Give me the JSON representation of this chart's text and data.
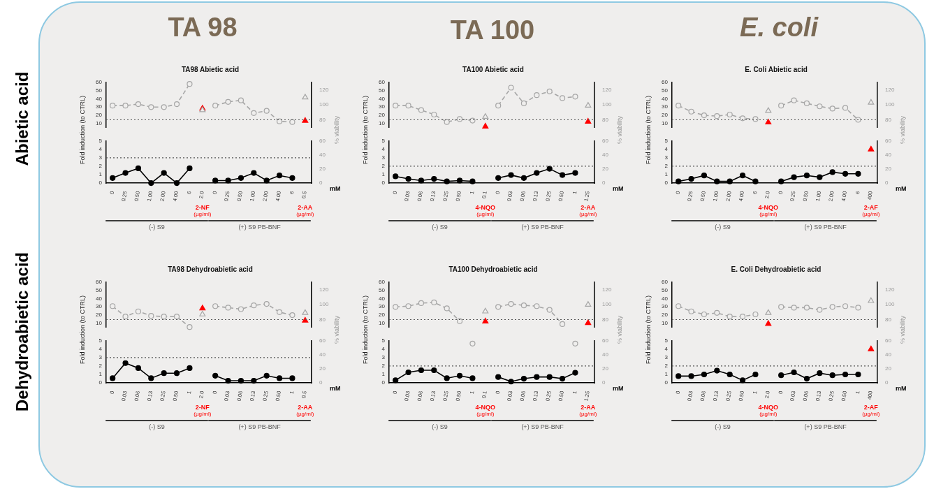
{
  "chart_data": [
    {
      "type": "line",
      "title": "TA98 Abietic acid",
      "categories": [
        "0",
        "0.25",
        "0.50",
        "1.00",
        "2.00",
        "4.00",
        "6",
        "2.0",
        "0",
        "0.25",
        "0.50",
        "1.00",
        "2.00",
        "4.00",
        "6",
        "0.5"
      ],
      "tick_labels": "y",
      "ylim": [
        5,
        60
      ],
      "yticks": [
        10,
        20,
        30,
        40,
        50,
        60
      ],
      "y2lim": [
        70,
        130
      ],
      "y2ticks": [
        80,
        100,
        120
      ],
      "series": [
        {
          "type": "line",
          "axis": "y2",
          "color": "#a6a6a6",
          "marker": "circle",
          "line_style": "dashed",
          "values": [
            99,
            99,
            101,
            97,
            97,
            101,
            128,
            null,
            99,
            104,
            106,
            89,
            92,
            78,
            77,
            null
          ]
        },
        {
          "type": "scatter",
          "axis": "y",
          "color": "#ff0000",
          "marker": "triangle",
          "values": [
            null,
            null,
            null,
            null,
            null,
            null,
            null,
            28,
            null,
            null,
            null,
            null,
            null,
            null,
            null,
            13
          ]
        },
        {
          "type": "scatter",
          "axis": "y2",
          "color": "#a6a6a6",
          "marker": "triangle",
          "values": [
            null,
            null,
            null,
            null,
            null,
            null,
            null,
            93,
            null,
            null,
            null,
            null,
            null,
            null,
            null,
            110
          ]
        }
      ],
      "ref_lines": [
        {
          "axis": "y2",
          "value": 80,
          "line_style": "dotted"
        }
      ]
    },
    {
      "type": "line",
      "categories": [
        "0",
        "0.25",
        "0.50",
        "1.00",
        "2.00",
        "4.00",
        "6",
        "2.0",
        "0",
        "0.25",
        "0.50",
        "1.00",
        "2.00",
        "4.00",
        "6",
        "0.5"
      ],
      "xlabel": "mM",
      "ylabel": "Fold induction (to CTRL)",
      "y2label": "% viability",
      "ylim": [
        0,
        5
      ],
      "yticks": [
        0,
        1,
        2,
        3,
        4,
        5
      ],
      "y2lim": [
        0,
        60
      ],
      "y2ticks": [
        0,
        20,
        40,
        60
      ],
      "series": [
        {
          "type": "line",
          "axis": "y",
          "color": "#000000",
          "marker": "circle",
          "line_style": "solid",
          "values": [
            0.6,
            1.2,
            1.75,
            0,
            1.2,
            0,
            1.75,
            null,
            0.3,
            0.3,
            0.6,
            1.2,
            0.3,
            0.9,
            0.6,
            null
          ]
        }
      ],
      "ref_lines": [
        {
          "axis": "y",
          "value": 3,
          "line_style": "dotted"
        }
      ],
      "annotations": [
        "2-NF",
        "(µg/ml)",
        "2-AA",
        "(µg/ml)",
        "(-) S9",
        "(+) S9 PB-BNF"
      ]
    },
    {
      "type": "line",
      "title": "TA100 Abietic acid",
      "categories": [
        "0",
        "0.03",
        "0.06",
        "0.13",
        "0.25",
        "0.50",
        "1",
        "0.1",
        "0",
        "0.03",
        "0.06",
        "0.13",
        "0.25",
        "0.50",
        "1",
        "1.25"
      ],
      "tick_labels": "y",
      "ylim": [
        5,
        60
      ],
      "yticks": [
        10,
        20,
        30,
        40,
        50,
        60
      ],
      "y2lim": [
        70,
        130
      ],
      "y2ticks": [
        80,
        100,
        120
      ],
      "series": [
        {
          "type": "line",
          "axis": "y2",
          "color": "#a6a6a6",
          "marker": "circle",
          "line_style": "dashed",
          "values": [
            99,
            99,
            93,
            87,
            77,
            81,
            79,
            null,
            99,
            123,
            102,
            113,
            118,
            109,
            111,
            null
          ]
        },
        {
          "type": "scatter",
          "axis": "y",
          "color": "#ff0000",
          "marker": "triangle",
          "values": [
            null,
            null,
            null,
            null,
            null,
            null,
            null,
            6,
            null,
            null,
            null,
            null,
            null,
            null,
            null,
            12
          ]
        },
        {
          "type": "scatter",
          "axis": "y2",
          "color": "#a6a6a6",
          "marker": "triangle",
          "values": [
            null,
            null,
            null,
            null,
            null,
            null,
            null,
            84,
            null,
            null,
            null,
            null,
            null,
            null,
            null,
            99
          ]
        }
      ],
      "ref_lines": [
        {
          "axis": "y2",
          "value": 80,
          "line_style": "dotted"
        }
      ]
    },
    {
      "type": "line",
      "categories": [
        "0",
        "0.03",
        "0.06",
        "0.13",
        "0.25",
        "0.50",
        "1",
        "0.1",
        "0",
        "0.03",
        "0.06",
        "0.13",
        "0.25",
        "0.50",
        "1",
        "1.25"
      ],
      "xlabel": "mM",
      "ylabel": "Fold induction (to CTRL)",
      "y2label": "% viability",
      "ylim": [
        0,
        5
      ],
      "yticks": [
        0,
        1,
        2,
        3,
        4,
        5
      ],
      "y2lim": [
        0,
        60
      ],
      "y2ticks": [
        0,
        20,
        40,
        60
      ],
      "series": [
        {
          "type": "line",
          "axis": "y",
          "color": "#000000",
          "marker": "circle",
          "line_style": "solid",
          "values": [
            0.8,
            0.5,
            0.3,
            0.5,
            0.2,
            0.3,
            0.2,
            null,
            0.6,
            0.95,
            0.6,
            1.2,
            1.7,
            0.95,
            1.2,
            null
          ]
        }
      ],
      "ref_lines": [
        {
          "axis": "y",
          "value": 2,
          "line_style": "dotted"
        }
      ],
      "annotations": [
        "4-NQO",
        "(µg/ml)",
        "2-AA",
        "(µg/ml)",
        "(-) S9",
        "(+) S9 PB-BNF"
      ]
    },
    {
      "type": "line",
      "title": "E. Coli Abietic acid",
      "categories": [
        "0",
        "0.25",
        "0.50",
        "1.00",
        "2.00",
        "4.00",
        "6",
        "2.0",
        "0",
        "0.25",
        "0.50",
        "1.00",
        "2.00",
        "4.00",
        "6",
        "400"
      ],
      "tick_labels": "y",
      "ylim": [
        5,
        60
      ],
      "yticks": [
        10,
        20,
        30,
        40,
        50,
        60
      ],
      "y2lim": [
        70,
        130
      ],
      "y2ticks": [
        80,
        100,
        120
      ],
      "series": [
        {
          "type": "line",
          "axis": "y2",
          "color": "#a6a6a6",
          "marker": "circle",
          "line_style": "dashed",
          "values": [
            99,
            91,
            86,
            85,
            87,
            82,
            81,
            null,
            99,
            106,
            102,
            98,
            95,
            96,
            80,
            null
          ]
        },
        {
          "type": "scatter",
          "axis": "y",
          "color": "#ff0000",
          "marker": "triangle",
          "values": [
            null,
            null,
            null,
            null,
            null,
            null,
            null,
            11,
            null,
            null,
            null,
            null,
            null,
            null,
            null,
            null
          ]
        },
        {
          "type": "scatter",
          "axis": "y2",
          "color": "#a6a6a6",
          "marker": "triangle",
          "values": [
            null,
            null,
            null,
            null,
            null,
            null,
            null,
            92,
            null,
            null,
            null,
            null,
            null,
            null,
            null,
            103
          ]
        }
      ],
      "ref_lines": [
        {
          "axis": "y2",
          "value": 80,
          "line_style": "dotted"
        }
      ]
    },
    {
      "type": "line",
      "categories": [
        "0",
        "0.25",
        "0.50",
        "1.00",
        "2.00",
        "4.00",
        "6",
        "2.0",
        "0",
        "0.25",
        "0.50",
        "1.00",
        "2.00",
        "4.00",
        "6",
        "400"
      ],
      "xlabel": "mM",
      "ylabel": "Fold induction (to CTRL)",
      "y2label": "% viability",
      "ylim": [
        0,
        5
      ],
      "yticks": [
        0,
        1,
        2,
        3,
        4,
        5
      ],
      "y2lim": [
        0,
        60
      ],
      "y2ticks": [
        0,
        20,
        40,
        60
      ],
      "series": [
        {
          "type": "line",
          "axis": "y",
          "color": "#000000",
          "marker": "circle",
          "line_style": "solid",
          "values": [
            0.2,
            0.5,
            0.9,
            0.2,
            0.2,
            0.9,
            0.2,
            null,
            0.2,
            0.7,
            0.9,
            0.7,
            1.3,
            1.1,
            1.1,
            null
          ]
        },
        {
          "type": "scatter",
          "axis": "y",
          "color": "#ff0000",
          "marker": "triangle",
          "values": [
            null,
            null,
            null,
            null,
            null,
            null,
            null,
            null,
            null,
            null,
            null,
            null,
            null,
            null,
            null,
            4
          ]
        }
      ],
      "ref_lines": [
        {
          "axis": "y",
          "value": 2,
          "line_style": "dotted"
        }
      ],
      "annotations": [
        "4-NQO",
        "(µg/ml)",
        "2-AF",
        "(µg/ml)",
        "(-) S9",
        "(+) S9 PB-BNF"
      ]
    },
    {
      "type": "line",
      "title": "TA98 Dehydroabietic acid",
      "categories": [
        "0",
        "0.03",
        "0.06",
        "0.13",
        "0.25",
        "0.50",
        "1",
        "2.0",
        "0",
        "0.03",
        "0.06",
        "0.13",
        "0.25",
        "0.50",
        "1",
        "0.5"
      ],
      "tick_labels": "y",
      "ylim": [
        5,
        60
      ],
      "yticks": [
        10,
        20,
        30,
        40,
        50,
        60
      ],
      "y2lim": [
        70,
        130
      ],
      "y2ticks": [
        80,
        100,
        120
      ],
      "series": [
        {
          "type": "line",
          "axis": "y2",
          "color": "#a6a6a6",
          "marker": "circle",
          "line_style": "dashed",
          "values": [
            98,
            84,
            91,
            85,
            84,
            84,
            70,
            null,
            98,
            96,
            94,
            99,
            101,
            90,
            86,
            null
          ]
        },
        {
          "type": "scatter",
          "axis": "y",
          "color": "#ff0000",
          "marker": "triangle",
          "values": [
            null,
            null,
            null,
            null,
            null,
            null,
            null,
            28,
            null,
            null,
            null,
            null,
            null,
            null,
            null,
            13
          ]
        },
        {
          "type": "scatter",
          "axis": "y2",
          "color": "#a6a6a6",
          "marker": "triangle",
          "values": [
            null,
            null,
            null,
            null,
            null,
            null,
            null,
            87,
            null,
            null,
            null,
            null,
            null,
            null,
            null,
            89
          ]
        }
      ],
      "ref_lines": [
        {
          "axis": "y2",
          "value": 80,
          "line_style": "dotted"
        }
      ]
    },
    {
      "type": "line",
      "categories": [
        "0",
        "0.03",
        "0.06",
        "0.13",
        "0.25",
        "0.50",
        "1",
        "2.0",
        "0",
        "0.03",
        "0.06",
        "0.13",
        "0.25",
        "0.50",
        "1",
        "0.5"
      ],
      "xlabel": "mM",
      "ylabel": "Fold induction (to CTRL)",
      "y2label": "% viability",
      "ylim": [
        0,
        5
      ],
      "yticks": [
        0,
        1,
        2,
        3,
        4,
        5
      ],
      "y2lim": [
        0,
        60
      ],
      "y2ticks": [
        0,
        20,
        40,
        60
      ],
      "series": [
        {
          "type": "line",
          "axis": "y",
          "color": "#000000",
          "marker": "circle",
          "line_style": "solid",
          "values": [
            0.55,
            2.35,
            1.75,
            0.55,
            1.15,
            1.15,
            1.75,
            null,
            0.85,
            0.25,
            0.25,
            0.25,
            0.85,
            0.55,
            0.55,
            null
          ]
        }
      ],
      "ref_lines": [
        {
          "axis": "y",
          "value": 3,
          "line_style": "dotted"
        }
      ],
      "annotations": [
        "2-NF",
        "(µg/ml)",
        "2-AA",
        "(µg/ml)",
        "(-) S9",
        "(+) S9 PB-BNF"
      ]
    },
    {
      "type": "line",
      "title": "TA100 Dehydroabietic acid",
      "categories": [
        "0",
        "0.03",
        "0.06",
        "0.13",
        "0.25",
        "0.50",
        "1",
        "0.1",
        "0",
        "0.03",
        "0.06",
        "0.13",
        "0.25",
        "0.50",
        "1",
        "1.25"
      ],
      "tick_labels": "y",
      "ylim": [
        5,
        60
      ],
      "yticks": [
        10,
        20,
        30,
        40,
        50,
        60
      ],
      "y2lim": [
        70,
        130
      ],
      "y2ticks": [
        80,
        100,
        120
      ],
      "series": [
        {
          "type": "line",
          "axis": "y2",
          "color": "#a6a6a6",
          "marker": "circle",
          "line_style": "dashed",
          "values": [
            97,
            98,
            102,
            103,
            95,
            78,
            null,
            null,
            97,
            101,
            99,
            98,
            93,
            74,
            null,
            null
          ]
        },
        {
          "type": "scatter",
          "axis": "y",
          "color": "#ff0000",
          "marker": "triangle",
          "values": [
            null,
            null,
            null,
            null,
            null,
            null,
            null,
            12,
            null,
            null,
            null,
            null,
            null,
            null,
            null,
            10
          ]
        },
        {
          "type": "scatter",
          "axis": "y2",
          "color": "#a6a6a6",
          "marker": "triangle",
          "values": [
            null,
            null,
            null,
            null,
            null,
            null,
            null,
            91,
            null,
            null,
            null,
            null,
            null,
            null,
            null,
            100
          ]
        }
      ],
      "ref_lines": [
        {
          "axis": "y2",
          "value": 80,
          "line_style": "dotted"
        }
      ]
    },
    {
      "type": "line",
      "categories": [
        "0",
        "0.03",
        "0.06",
        "0.13",
        "0.25",
        "0.50",
        "1",
        "0.1",
        "0",
        "0.03",
        "0.06",
        "0.13",
        "0.25",
        "0.50",
        "1",
        "1.25"
      ],
      "xlabel": "mM",
      "ylabel": "Fold induction (to CTRL)",
      "y2label": "% viability",
      "ylim": [
        0,
        5
      ],
      "yticks": [
        0,
        1,
        2,
        3,
        4,
        5
      ],
      "y2lim": [
        0,
        60
      ],
      "y2ticks": [
        0,
        20,
        40,
        60
      ],
      "series": [
        {
          "type": "line",
          "axis": "y",
          "color": "#000000",
          "marker": "circle",
          "line_style": "solid",
          "values": [
            0.3,
            1.25,
            1.5,
            1.5,
            0.55,
            0.85,
            0.55,
            null,
            0.7,
            0.15,
            0.5,
            0.7,
            0.7,
            0.5,
            1.2,
            null
          ]
        },
        {
          "type": "scatter",
          "axis": "y2",
          "color": "#a6a6a6",
          "marker": "circle",
          "values": [
            null,
            null,
            null,
            null,
            null,
            null,
            56,
            null,
            null,
            null,
            null,
            null,
            null,
            null,
            56,
            null
          ]
        }
      ],
      "ref_lines": [
        {
          "axis": "y",
          "value": 2,
          "line_style": "dotted"
        }
      ],
      "annotations": [
        "4-NQO",
        "(µg/ml)",
        "2-AA",
        "(µg/ml)",
        "(-) S9",
        "(+) S9 PB-BNF"
      ]
    },
    {
      "type": "line",
      "title": "E. Coli Dehydroabietic acid",
      "categories": [
        "0",
        "0.03",
        "0.06",
        "0.13",
        "0.25",
        "0.50",
        "1",
        "2.0",
        "0",
        "0.03",
        "0.06",
        "0.13",
        "0.25",
        "0.50",
        "1",
        "400"
      ],
      "tick_labels": "y",
      "ylim": [
        5,
        60
      ],
      "yticks": [
        10,
        20,
        30,
        40,
        50,
        60
      ],
      "y2lim": [
        70,
        130
      ],
      "y2ticks": [
        80,
        100,
        120
      ],
      "series": [
        {
          "type": "line",
          "axis": "y2",
          "color": "#a6a6a6",
          "marker": "circle",
          "line_style": "dashed",
          "values": [
            98,
            91,
            87,
            89,
            84,
            84,
            87,
            null,
            97,
            96,
            96,
            93,
            97,
            98,
            96,
            null
          ]
        },
        {
          "type": "scatter",
          "axis": "y",
          "color": "#ff0000",
          "marker": "triangle",
          "values": [
            null,
            null,
            null,
            null,
            null,
            null,
            null,
            9,
            null,
            null,
            null,
            null,
            null,
            null,
            null,
            null
          ]
        },
        {
          "type": "scatter",
          "axis": "y2",
          "color": "#a6a6a6",
          "marker": "triangle",
          "values": [
            null,
            null,
            null,
            null,
            null,
            null,
            null,
            89,
            null,
            null,
            null,
            null,
            null,
            null,
            null,
            105
          ]
        }
      ],
      "ref_lines": [
        {
          "axis": "y2",
          "value": 80,
          "line_style": "dotted"
        }
      ]
    },
    {
      "type": "line",
      "categories": [
        "0",
        "0.03",
        "0.06",
        "0.13",
        "0.25",
        "0.50",
        "1",
        "2.0",
        "0",
        "0.03",
        "0.06",
        "0.13",
        "0.25",
        "0.50",
        "1",
        "400"
      ],
      "xlabel": "mM",
      "ylabel": "Fold induction (to CTRL)",
      "y2label": "% viability",
      "ylim": [
        0,
        5
      ],
      "yticks": [
        0,
        1,
        2,
        3,
        4,
        5
      ],
      "y2lim": [
        0,
        60
      ],
      "y2ticks": [
        0,
        20,
        40,
        60
      ],
      "series": [
        {
          "type": "line",
          "axis": "y",
          "color": "#000000",
          "marker": "circle",
          "line_style": "solid",
          "values": [
            0.8,
            0.8,
            1.0,
            1.45,
            1.0,
            0.3,
            1.0,
            null,
            0.9,
            1.25,
            0.5,
            1.15,
            0.9,
            1.0,
            1.0,
            null
          ]
        },
        {
          "type": "scatter",
          "axis": "y",
          "color": "#ff0000",
          "marker": "triangle",
          "values": [
            null,
            null,
            null,
            null,
            null,
            null,
            null,
            null,
            null,
            null,
            null,
            null,
            null,
            null,
            null,
            4
          ]
        }
      ],
      "ref_lines": [
        {
          "axis": "y",
          "value": 2,
          "line_style": "dotted"
        }
      ],
      "annotations": [
        "4-NQO",
        "(µg/ml)",
        "2-AF",
        "(µg/ml)",
        "(-) S9",
        "(+) S9 PB-BNF"
      ]
    },
    {
      "type": "other",
      "annotations": [
        "TA 98",
        "TA 100",
        "E. coli",
        "Abietic acid",
        "Dehydroabietic acid"
      ]
    }
  ]
}
